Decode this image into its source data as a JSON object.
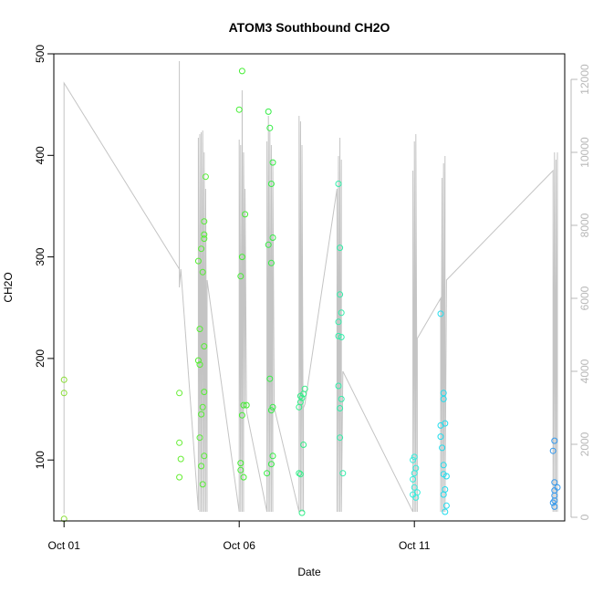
{
  "chart_data": {
    "type": "scatter",
    "title": "ATOM3 Southbound CH2O",
    "xlabel": "Date",
    "ylabel": "CH2O",
    "xlim": [
      "2017-09-30T17:00",
      "2017-10-15T07:00"
    ],
    "ylim": [
      40,
      500
    ],
    "x_ticks": [
      {
        "date": "2017-10-01",
        "label": "Oct 01"
      },
      {
        "date": "2017-10-06",
        "label": "Oct 06"
      },
      {
        "date": "2017-10-11",
        "label": "Oct 11"
      }
    ],
    "y_ticks": [
      100,
      200,
      300,
      400,
      500
    ],
    "secondary_axis": {
      "lim": [
        -100,
        12700
      ],
      "ticks": [
        0,
        2000,
        4000,
        6000,
        8000,
        10000,
        12000
      ],
      "color": "#b8b8b8"
    },
    "grid": false,
    "legend": "none",
    "colors": {
      "altitude_line": "#c4c4c4",
      "axis": "#000000",
      "points_green": "#33ee44",
      "points_cyan": "#22ddee",
      "points_blue": "#3399ee"
    },
    "series": [
      {
        "points": [
          [
            "2017-10-01T00:00",
            179,
            "#88dd33"
          ],
          [
            "2017-10-01T00:00",
            166,
            "#88dd33"
          ],
          [
            "2017-10-01T00:00",
            42,
            "#88dd33"
          ],
          [
            "2017-10-04T07:00",
            166,
            "#66ee33"
          ],
          [
            "2017-10-04T07:00",
            117,
            "#66ee33"
          ],
          [
            "2017-10-04T08:00",
            101,
            "#66ee33"
          ],
          [
            "2017-10-04T07:00",
            83,
            "#66ee33"
          ],
          [
            "2017-10-04T20:00",
            198,
            "#55ee33"
          ],
          [
            "2017-10-04T21:00",
            194,
            "#55ee33"
          ],
          [
            "2017-10-04T21:00",
            229,
            "#55ee33"
          ],
          [
            "2017-10-04T20:00",
            296,
            "#55ee33"
          ],
          [
            "2017-10-04T22:00",
            308,
            "#55ee33"
          ],
          [
            "2017-10-05T00:00",
            318,
            "#55ee33"
          ],
          [
            "2017-10-05T00:00",
            322,
            "#55ee33"
          ],
          [
            "2017-10-05T00:00",
            335,
            "#55ee33"
          ],
          [
            "2017-10-05T01:00",
            379,
            "#55ee33"
          ],
          [
            "2017-10-04T23:00",
            285,
            "#55ee33"
          ],
          [
            "2017-10-05T00:00",
            212,
            "#55ee33"
          ],
          [
            "2017-10-05T00:00",
            167,
            "#55ee33"
          ],
          [
            "2017-10-04T23:00",
            152,
            "#55ee33"
          ],
          [
            "2017-10-04T22:00",
            145,
            "#55ee33"
          ],
          [
            "2017-10-04T21:00",
            122,
            "#55ee33"
          ],
          [
            "2017-10-05T00:00",
            104,
            "#55ee33"
          ],
          [
            "2017-10-04T22:00",
            94,
            "#55ee33"
          ],
          [
            "2017-10-04T23:00",
            76,
            "#55ee33"
          ],
          [
            "2017-10-06T02:00",
            483,
            "#44ee33"
          ],
          [
            "2017-10-06T00:00",
            445,
            "#44ee33"
          ],
          [
            "2017-10-06T04:00",
            342,
            "#44ee33"
          ],
          [
            "2017-10-06T02:00",
            300,
            "#44ee33"
          ],
          [
            "2017-10-06T01:00",
            281,
            "#44ee33"
          ],
          [
            "2017-10-06T03:00",
            154,
            "#44ee33"
          ],
          [
            "2017-10-06T05:00",
            154,
            "#44ee33"
          ],
          [
            "2017-10-06T02:00",
            144,
            "#44ee33"
          ],
          [
            "2017-10-06T01:00",
            97,
            "#44ee33"
          ],
          [
            "2017-10-06T01:00",
            90,
            "#44ee33"
          ],
          [
            "2017-10-06T03:00",
            83,
            "#44ee33"
          ],
          [
            "2017-10-06T20:00",
            443,
            "#33ee44"
          ],
          [
            "2017-10-06T21:00",
            427,
            "#33ee44"
          ],
          [
            "2017-10-06T23:00",
            393,
            "#33ee44"
          ],
          [
            "2017-10-06T22:00",
            372,
            "#33ee44"
          ],
          [
            "2017-10-06T23:00",
            319,
            "#33ee44"
          ],
          [
            "2017-10-06T20:00",
            312,
            "#33ee44"
          ],
          [
            "2017-10-06T22:00",
            294,
            "#33ee44"
          ],
          [
            "2017-10-06T21:00",
            180,
            "#33ee44"
          ],
          [
            "2017-10-06T22:00",
            149,
            "#33ee44"
          ],
          [
            "2017-10-06T23:00",
            152,
            "#33ee44"
          ],
          [
            "2017-10-06T23:00",
            104,
            "#33ee44"
          ],
          [
            "2017-10-06T22:00",
            96,
            "#33ee44"
          ],
          [
            "2017-10-06T19:00",
            87,
            "#33ee44"
          ],
          [
            "2017-10-07T21:00",
            170,
            "#33ee88"
          ],
          [
            "2017-10-07T20:00",
            165,
            "#33ee88"
          ],
          [
            "2017-10-07T18:00",
            163,
            "#33ee88"
          ],
          [
            "2017-10-07T19:00",
            161,
            "#33ee88"
          ],
          [
            "2017-10-07T18:00",
            157,
            "#33ee88"
          ],
          [
            "2017-10-07T17:00",
            152,
            "#33ee88"
          ],
          [
            "2017-10-07T20:00",
            115,
            "#33ee88"
          ],
          [
            "2017-10-07T17:00",
            87,
            "#33ee88"
          ],
          [
            "2017-10-07T18:00",
            86,
            "#33ee88"
          ],
          [
            "2017-10-07T19:00",
            48,
            "#33ee88"
          ],
          [
            "2017-10-08T20:00",
            372,
            "#33eeaa"
          ],
          [
            "2017-10-08T21:00",
            309,
            "#33eeaa"
          ],
          [
            "2017-10-08T21:00",
            263,
            "#33eeaa"
          ],
          [
            "2017-10-08T22:00",
            245,
            "#33eeaa"
          ],
          [
            "2017-10-08T20:00",
            236,
            "#33eeaa"
          ],
          [
            "2017-10-08T20:00",
            222,
            "#33eeaa"
          ],
          [
            "2017-10-08T22:00",
            221,
            "#33eeaa"
          ],
          [
            "2017-10-08T20:00",
            173,
            "#33eeaa"
          ],
          [
            "2017-10-08T22:00",
            160,
            "#33eeaa"
          ],
          [
            "2017-10-08T21:00",
            151,
            "#33eeaa"
          ],
          [
            "2017-10-08T21:00",
            122,
            "#33eeaa"
          ],
          [
            "2017-10-08T23:00",
            87,
            "#33eeaa"
          ],
          [
            "2017-10-11T00:00",
            103,
            "#33eedd"
          ],
          [
            "2017-10-10T23:00",
            100,
            "#33eedd"
          ],
          [
            "2017-10-11T01:00",
            92,
            "#33eedd"
          ],
          [
            "2017-10-10T23:00",
            81,
            "#33eedd"
          ],
          [
            "2017-10-11T00:00",
            87,
            "#33eedd"
          ],
          [
            "2017-10-11T00:00",
            73,
            "#33eedd"
          ],
          [
            "2017-10-11T02:00",
            68,
            "#33eedd"
          ],
          [
            "2017-10-10T23:00",
            66,
            "#33eedd"
          ],
          [
            "2017-10-11T01:00",
            63,
            "#33eedd"
          ],
          [
            "2017-10-11T18:00",
            244,
            "#22ddee"
          ],
          [
            "2017-10-11T20:00",
            166,
            "#22ddee"
          ],
          [
            "2017-10-11T21:00",
            136,
            "#22ddee"
          ],
          [
            "2017-10-11T18:00",
            134,
            "#22ddee"
          ],
          [
            "2017-10-11T20:00",
            160,
            "#22ddee"
          ],
          [
            "2017-10-11T18:00",
            123,
            "#22ddee"
          ],
          [
            "2017-10-11T19:00",
            112,
            "#22ddee"
          ],
          [
            "2017-10-11T20:00",
            95,
            "#22ddee"
          ],
          [
            "2017-10-11T20:00",
            86,
            "#22ddee"
          ],
          [
            "2017-10-11T22:00",
            84,
            "#22ddee"
          ],
          [
            "2017-10-11T21:00",
            71,
            "#22ddee"
          ],
          [
            "2017-10-11T20:00",
            66,
            "#22ddee"
          ],
          [
            "2017-10-11T22:00",
            55,
            "#22ddee"
          ],
          [
            "2017-10-11T21:00",
            49,
            "#22ddee"
          ],
          [
            "2017-10-15T00:00",
            119,
            "#3399ee"
          ],
          [
            "2017-10-14T23:00",
            109,
            "#3399ee"
          ],
          [
            "2017-10-15T00:00",
            78,
            "#3399ee"
          ],
          [
            "2017-10-15T02:00",
            73,
            "#3399ee"
          ],
          [
            "2017-10-15T00:00",
            70,
            "#3399ee"
          ],
          [
            "2017-10-15T00:00",
            65,
            "#3399ee"
          ],
          [
            "2017-10-15T00:00",
            60,
            "#3399ee"
          ],
          [
            "2017-10-14T23:00",
            58,
            "#3399ee"
          ],
          [
            "2017-10-15T00:00",
            54,
            "#3399ee"
          ]
        ]
      }
    ],
    "altitude_trace": [
      [
        "2017-10-01T00:00",
        100
      ],
      [
        "2017-10-01T00:00",
        11900
      ],
      [
        "2017-10-04T07:00",
        6800
      ],
      [
        "2017-10-04T07:00",
        12500
      ],
      [
        "2017-10-04T07:00",
        6300
      ],
      [
        "2017-10-04T08:00",
        6800
      ],
      [
        "2017-10-04T20:00",
        200
      ],
      [
        "2017-10-04T20:00",
        10400
      ],
      [
        "2017-10-04T21:00",
        150
      ],
      [
        "2017-10-04T21:00",
        10500
      ],
      [
        "2017-10-04T22:00",
        150
      ],
      [
        "2017-10-04T22:00",
        10550
      ],
      [
        "2017-10-04T23:00",
        150
      ],
      [
        "2017-10-04T23:00",
        10600
      ],
      [
        "2017-10-05T00:00",
        150
      ],
      [
        "2017-10-05T00:00",
        10000
      ],
      [
        "2017-10-05T01:00",
        150
      ],
      [
        "2017-10-05T01:00",
        9000
      ],
      [
        "2017-10-05T02:00",
        150
      ],
      [
        "2017-10-05T02:00",
        6500
      ],
      [
        "2017-10-06T00:00",
        150
      ],
      [
        "2017-10-06T00:00",
        10350
      ],
      [
        "2017-10-06T01:00",
        150
      ],
      [
        "2017-10-06T01:00",
        10200
      ],
      [
        "2017-10-06T02:00",
        150
      ],
      [
        "2017-10-06T02:00",
        11700
      ],
      [
        "2017-10-06T03:00",
        150
      ],
      [
        "2017-10-06T03:00",
        10000
      ],
      [
        "2017-10-06T04:00",
        3000
      ],
      [
        "2017-10-06T04:00",
        9000
      ],
      [
        "2017-10-06T05:00",
        2900
      ],
      [
        "2017-10-06T19:00",
        150
      ],
      [
        "2017-10-06T19:00",
        10300
      ],
      [
        "2017-10-06T20:00",
        150
      ],
      [
        "2017-10-06T20:00",
        11000
      ],
      [
        "2017-10-06T21:00",
        150
      ],
      [
        "2017-10-06T21:00",
        10600
      ],
      [
        "2017-10-06T22:00",
        150
      ],
      [
        "2017-10-06T22:00",
        10200
      ],
      [
        "2017-10-06T23:00",
        150
      ],
      [
        "2017-10-06T23:00",
        9800
      ],
      [
        "2017-10-07T00:00",
        3000
      ],
      [
        "2017-10-07T17:00",
        150
      ],
      [
        "2017-10-07T17:00",
        11000
      ],
      [
        "2017-10-07T18:00",
        150
      ],
      [
        "2017-10-07T18:00",
        10850
      ],
      [
        "2017-10-07T19:00",
        150
      ],
      [
        "2017-10-07T19:00",
        10200
      ],
      [
        "2017-10-07T20:00",
        150
      ],
      [
        "2017-10-07T20:00",
        3000
      ],
      [
        "2017-10-07T21:00",
        3100
      ],
      [
        "2017-10-08T19:00",
        9000
      ],
      [
        "2017-10-08T19:00",
        150
      ],
      [
        "2017-10-08T20:00",
        9900
      ],
      [
        "2017-10-08T20:00",
        150
      ],
      [
        "2017-10-08T21:00",
        10400
      ],
      [
        "2017-10-08T21:00",
        150
      ],
      [
        "2017-10-08T22:00",
        9800
      ],
      [
        "2017-10-08T22:00",
        150
      ],
      [
        "2017-10-08T23:00",
        4000
      ],
      [
        "2017-10-10T23:00",
        150
      ],
      [
        "2017-10-10T23:00",
        9500
      ],
      [
        "2017-10-11T00:00",
        150
      ],
      [
        "2017-10-11T00:00",
        10300
      ],
      [
        "2017-10-11T01:00",
        150
      ],
      [
        "2017-10-11T01:00",
        10500
      ],
      [
        "2017-10-11T02:00",
        150
      ],
      [
        "2017-10-11T02:00",
        4900
      ],
      [
        "2017-10-11T18:00",
        6000
      ],
      [
        "2017-10-11T18:00",
        150
      ],
      [
        "2017-10-11T19:00",
        9300
      ],
      [
        "2017-10-11T19:00",
        150
      ],
      [
        "2017-10-11T20:00",
        9700
      ],
      [
        "2017-10-11T20:00",
        150
      ],
      [
        "2017-10-11T21:00",
        9900
      ],
      [
        "2017-10-11T21:00",
        150
      ],
      [
        "2017-10-11T22:00",
        6500
      ],
      [
        "2017-10-14T23:00",
        9500
      ],
      [
        "2017-10-14T23:00",
        150
      ],
      [
        "2017-10-15T00:00",
        10000
      ],
      [
        "2017-10-15T00:00",
        150
      ],
      [
        "2017-10-15T01:00",
        9800
      ],
      [
        "2017-10-15T01:00",
        150
      ],
      [
        "2017-10-15T02:00",
        10000
      ],
      [
        "2017-10-15T02:00",
        150
      ]
    ]
  }
}
